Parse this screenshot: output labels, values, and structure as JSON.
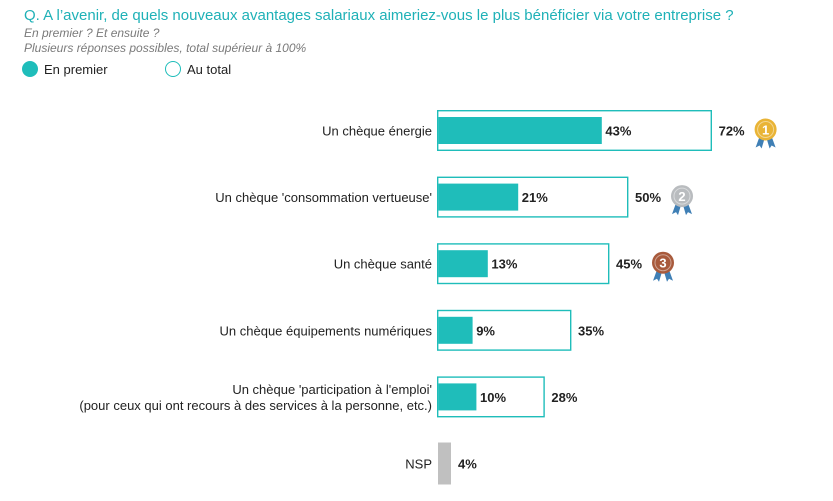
{
  "question": "Q. A l’avenir, de quels nouveaux avantages salariaux aimeriez-vous le plus bénéficier via votre entreprise ?",
  "subtitle1": "En premier ? Et ensuite ?",
  "subtitle2": "Plusieurs réponses possibles, total supérieur à 100%",
  "legend": {
    "first": "En premier",
    "total": "Au total"
  },
  "colors": {
    "accent": "#1FBDBA",
    "title": "#1FB1B7",
    "nsp": "#C0C0C0",
    "gold": "#E9B436",
    "silver": "#B9BCBF",
    "bronze": "#A85A3C",
    "ribbon": "#3F7FB5"
  },
  "chart_data": {
    "type": "bar",
    "orientation": "horizontal",
    "value_suffix": "%",
    "categories": [
      [
        "Un chèque énergie"
      ],
      [
        "Un chèque 'consommation vertueuse'"
      ],
      [
        "Un chèque santé"
      ],
      [
        "Un chèque équipements numériques"
      ],
      [
        "Un chèque 'participation à l'emploi'",
        "(pour ceux qui ont recours à des services à la personne, etc.)"
      ],
      [
        "NSP"
      ]
    ],
    "series": [
      {
        "name": "En premier",
        "values": [
          43,
          21,
          13,
          9,
          10,
          null
        ]
      },
      {
        "name": "Au total",
        "values": [
          72,
          50,
          45,
          35,
          28,
          4
        ]
      }
    ],
    "medals": [
      {
        "category_index": 0,
        "rank": "1"
      },
      {
        "category_index": 1,
        "rank": "2"
      },
      {
        "category_index": 2,
        "rank": "3"
      }
    ],
    "nsp_index": 5
  }
}
